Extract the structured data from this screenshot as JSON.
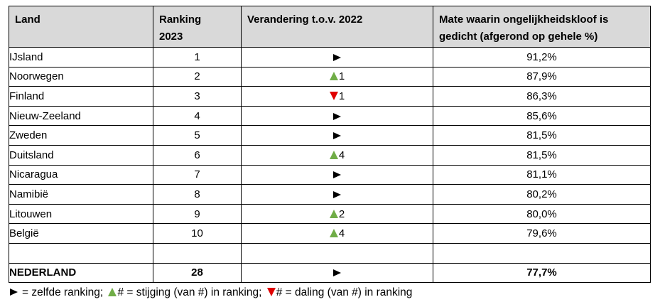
{
  "headers": {
    "land": "Land",
    "ranking": "Ranking 2023",
    "change": "Verandering t.o.v. 2022",
    "gap": "Mate waarin ongelijkheidskloof is gedicht (afgerond op gehele %)"
  },
  "rows": [
    {
      "land": "IJsland",
      "rank": "1",
      "change_dir": "same",
      "change_num": "",
      "pct": "91,2%"
    },
    {
      "land": "Noorwegen",
      "rank": "2",
      "change_dir": "up",
      "change_num": "1",
      "pct": "87,9%"
    },
    {
      "land": "Finland",
      "rank": "3",
      "change_dir": "down",
      "change_num": "1",
      "pct": "86,3%"
    },
    {
      "land": "Nieuw-Zeeland",
      "rank": "4",
      "change_dir": "same",
      "change_num": "",
      "pct": "85,6%"
    },
    {
      "land": "Zweden",
      "rank": "5",
      "change_dir": "same",
      "change_num": "",
      "pct": "81,5%"
    },
    {
      "land": "Duitsland",
      "rank": "6",
      "change_dir": "up",
      "change_num": "4",
      "pct": "81,5%"
    },
    {
      "land": "Nicaragua",
      "rank": "7",
      "change_dir": "same",
      "change_num": "",
      "pct": "81,1%"
    },
    {
      "land": "Namibië",
      "rank": "8",
      "change_dir": "same",
      "change_num": "",
      "pct": "80,2%"
    },
    {
      "land": "Litouwen",
      "rank": "9",
      "change_dir": "up",
      "change_num": "2",
      "pct": "80,0%"
    },
    {
      "land": "België",
      "rank": "10",
      "change_dir": "up",
      "change_num": "4",
      "pct": "79,6%"
    }
  ],
  "total": {
    "land": "NEDERLAND",
    "rank": "28",
    "change_dir": "same",
    "change_num": "",
    "pct": "77,7%"
  },
  "legend": {
    "same": "= zelfde ranking;",
    "up": "# = stijging (van #) in ranking;",
    "down": "# = daling (van #) in ranking"
  },
  "colors": {
    "up": "#70ad47",
    "down": "#e00000",
    "header_bg": "#d9d9d9"
  },
  "icons": {
    "same": "right-triangle-icon",
    "up": "up-triangle-icon",
    "down": "down-triangle-icon"
  }
}
